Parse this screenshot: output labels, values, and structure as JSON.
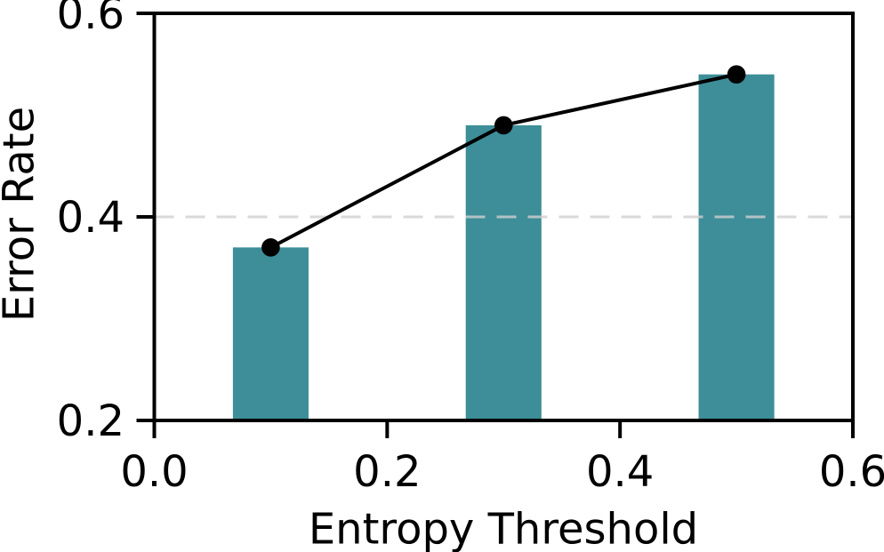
{
  "figure": {
    "background": "#ffffff",
    "text_color": "#000000"
  },
  "chart_data": {
    "type": "bar",
    "subtype": "bar-with-line-overlay",
    "title": "",
    "xlabel": "Entropy Threshold",
    "ylabel": "Error Rate",
    "x": [
      0.1,
      0.3,
      0.5
    ],
    "series": [
      {
        "name": "error-rate-bars",
        "type": "bar",
        "values": [
          0.37,
          0.49,
          0.54
        ],
        "color": "#3d8e98",
        "bar_width": 0.065
      },
      {
        "name": "error-rate-line",
        "type": "line",
        "values": [
          0.37,
          0.49,
          0.54
        ],
        "color": "#000000",
        "marker": "circle",
        "marker_color": "#000000"
      }
    ],
    "xlim": [
      0.0,
      0.6
    ],
    "ylim": [
      0.2,
      0.6
    ],
    "xticks": {
      "values": [
        0.0,
        0.2,
        0.4,
        0.6
      ],
      "labels": [
        "0.0",
        "0.2",
        "0.4",
        "0.6"
      ]
    },
    "yticks": {
      "values": [
        0.2,
        0.4,
        0.6
      ],
      "labels": [
        "0.2",
        "0.4",
        "0.6"
      ]
    },
    "grid": {
      "y_values": [
        0.4
      ],
      "style": "dashed",
      "color": "#cfcfcf",
      "on": true
    },
    "legend": {
      "visible": false
    },
    "axis_color": "#000000"
  }
}
